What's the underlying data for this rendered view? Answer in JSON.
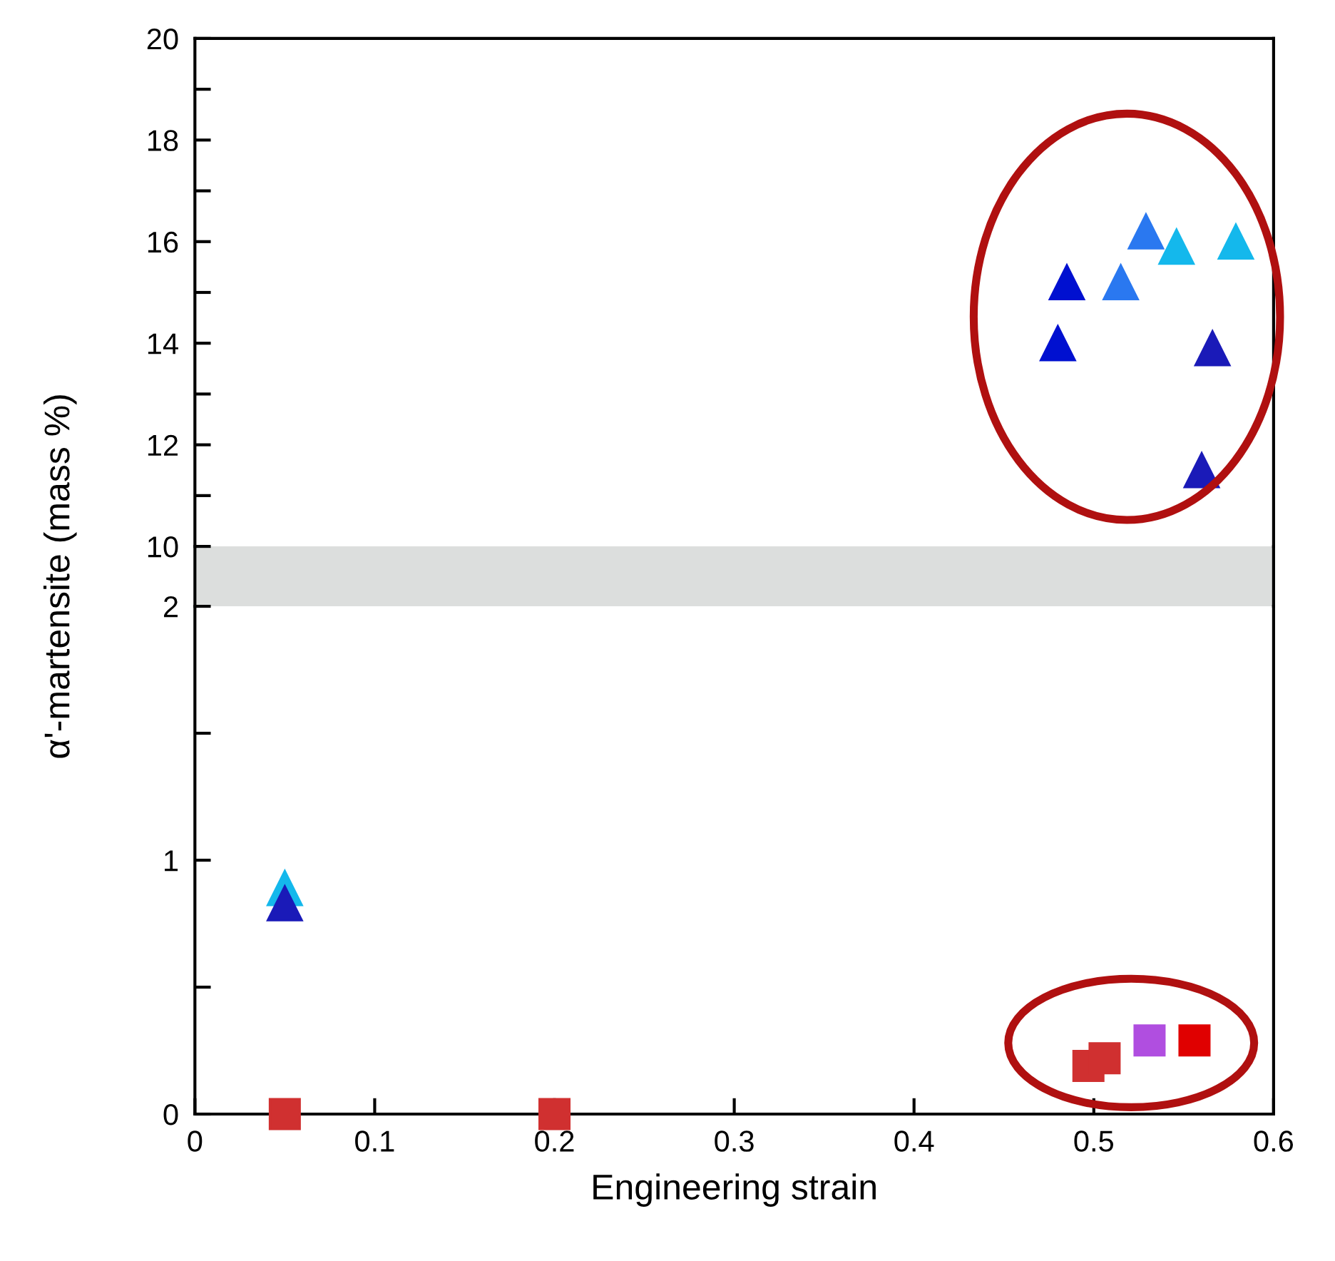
{
  "chart_data": [
    {
      "type": "scatter",
      "ylabel": "α'-martensite (mass %)",
      "xlim": [
        0,
        0.6
      ],
      "ylim": [
        10,
        20
      ],
      "tick_labels": "y",
      "grid": false,
      "yticks": [
        10,
        {
          "value": 11,
          "label": null
        },
        12,
        {
          "value": 13,
          "label": null
        },
        14,
        {
          "value": 15,
          "label": null
        },
        16,
        {
          "value": 17,
          "label": null
        },
        18,
        {
          "value": 19,
          "label": null
        },
        20
      ],
      "series": [
        {
          "color": "#0010d0",
          "marker": "triangle",
          "x": [
            0.485,
            0.48
          ],
          "values": [
            15.2,
            14.0
          ]
        },
        {
          "color": "#2a78f0",
          "marker": "triangle",
          "x": [
            0.515,
            0.529
          ],
          "values": [
            15.2,
            16.2
          ]
        },
        {
          "color": "#14b8ec",
          "marker": "triangle",
          "x": [
            0.546,
            0.579
          ],
          "values": [
            15.9,
            16.0
          ]
        },
        {
          "color": "#1a1ab8",
          "marker": "triangle",
          "x": [
            0.566,
            0.56
          ],
          "values": [
            13.9,
            11.5
          ]
        }
      ]
    },
    {
      "type": "scatter",
      "xlabel": "Engineering strain",
      "xlim": [
        0,
        0.6
      ],
      "ylim": [
        0,
        2
      ],
      "grid": false,
      "xticks": [
        0,
        0.1,
        0.2,
        0.3,
        0.4,
        0.5,
        0.6
      ],
      "yticks": [
        0,
        {
          "value": 0.5,
          "label": null
        },
        1,
        {
          "value": 1.5,
          "label": null
        },
        2
      ],
      "series": [
        {
          "color": "#14b8ec",
          "marker": "triangle",
          "x": [
            0.05
          ],
          "values": [
            0.89
          ]
        },
        {
          "color": "#1a1ab8",
          "marker": "triangle",
          "x": [
            0.05
          ],
          "values": [
            0.83
          ]
        },
        {
          "color": "#d03030",
          "marker": "square",
          "x": [
            0.05,
            0.2,
            0.497,
            0.506
          ],
          "values": [
            0,
            0,
            0.19,
            0.22
          ]
        },
        {
          "color": "#b04ee0",
          "marker": "square",
          "x": [
            0.531
          ],
          "values": [
            0.29
          ]
        },
        {
          "color": "#e00000",
          "marker": "square",
          "x": [
            0.556
          ],
          "values": [
            0.29
          ]
        }
      ]
    }
  ]
}
